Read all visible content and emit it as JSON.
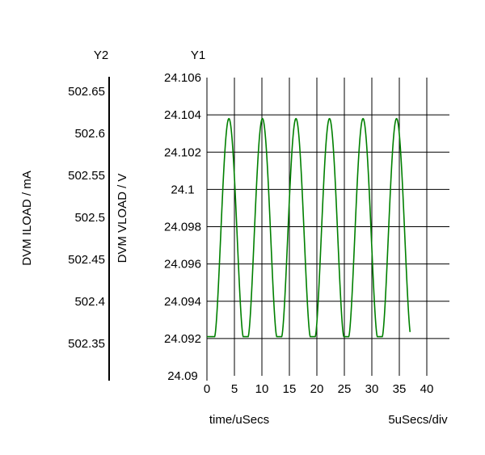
{
  "chart_data": {
    "type": "line",
    "y2": {
      "header": "Y2",
      "label": "DVM ILOAD / mA",
      "ticks": [
        "502.65",
        "502.6",
        "502.55",
        "502.5",
        "502.45",
        "502.4",
        "502.35"
      ],
      "tick_values": [
        502.65,
        502.6,
        502.55,
        502.5,
        502.45,
        502.4,
        502.35
      ]
    },
    "y1": {
      "header": "Y1",
      "label": "DVM VLOAD / V",
      "ticks": [
        "24.106",
        "24.104",
        "24.102",
        "24.1",
        "24.098",
        "24.096",
        "24.094",
        "24.092",
        "24.09"
      ],
      "tick_values": [
        24.106,
        24.104,
        24.102,
        24.1,
        24.098,
        24.096,
        24.094,
        24.092,
        24.09
      ],
      "ylim": [
        24.09,
        24.106
      ]
    },
    "x": {
      "label": "time/uSecs",
      "scale_label": "5uSecs/div",
      "ticks": [
        "0",
        "5",
        "10",
        "15",
        "20",
        "25",
        "30",
        "35",
        "40"
      ],
      "tick_values": [
        0,
        5,
        10,
        15,
        20,
        25,
        30,
        35,
        40
      ],
      "xlim": [
        0,
        40
      ]
    },
    "grid": true,
    "series": [
      {
        "color": "#008000",
        "period_us": 6.1,
        "peak_times_us": [
          4.0,
          10.1,
          16.2,
          22.3,
          28.4,
          34.5
        ],
        "x": [
          0.0,
          0.5,
          1.0,
          1.5,
          2.0,
          2.5,
          3.0,
          3.5,
          4.0,
          4.5,
          5.0,
          5.5,
          6.0,
          6.5,
          7.0,
          7.5,
          8.0,
          8.5,
          9.0,
          9.5,
          10.0,
          10.5,
          11.0,
          11.5,
          12.0,
          12.5,
          13.0,
          13.5,
          14.0,
          14.5,
          15.0,
          15.5,
          16.0,
          16.5,
          17.0,
          17.5,
          18.0,
          18.5,
          19.0,
          19.5,
          20.0,
          20.5,
          21.0,
          21.5,
          22.0,
          22.5,
          23.0,
          23.5,
          24.0,
          24.5,
          25.0,
          25.5,
          26.0,
          26.5,
          27.0,
          27.5,
          28.0,
          28.5,
          29.0,
          29.5,
          30.0,
          30.5,
          31.0,
          31.5,
          32.0,
          32.5,
          33.0,
          33.5,
          34.0,
          34.5,
          35.0,
          35.5,
          36.0,
          36.5,
          37.0
        ],
        "y": [
          24.0921,
          24.0921,
          24.0926,
          24.095,
          24.0985,
          24.1018,
          24.1038,
          24.1034,
          24.1039,
          24.102,
          24.0989,
          24.0948,
          24.0923,
          24.0921,
          24.0921,
          24.0921,
          24.0927,
          24.0953,
          24.0989,
          24.1021,
          24.1038,
          24.1035,
          24.1039,
          24.1017,
          24.0985,
          24.0945,
          24.0922,
          24.0921,
          24.0921,
          24.0921,
          24.0928,
          24.0957,
          24.0993,
          24.1024,
          24.1039,
          24.1035,
          24.1038,
          24.1015,
          24.0981,
          24.094,
          24.0922,
          24.0921,
          24.0921,
          24.0921,
          24.093,
          24.0961,
          24.0997,
          24.1027,
          24.1039,
          24.1036,
          24.1036,
          24.1012,
          24.0977,
          24.0937,
          24.0921,
          24.0921,
          24.0921,
          24.0921,
          24.0932,
          24.0965,
          24.1,
          24.103,
          24.1039,
          24.1037,
          24.1035,
          24.1009,
          24.0973,
          24.0934,
          24.0921,
          24.0921,
          24.0921,
          24.0921,
          24.0933,
          24.0968,
          24.0921
        ]
      }
    ]
  }
}
